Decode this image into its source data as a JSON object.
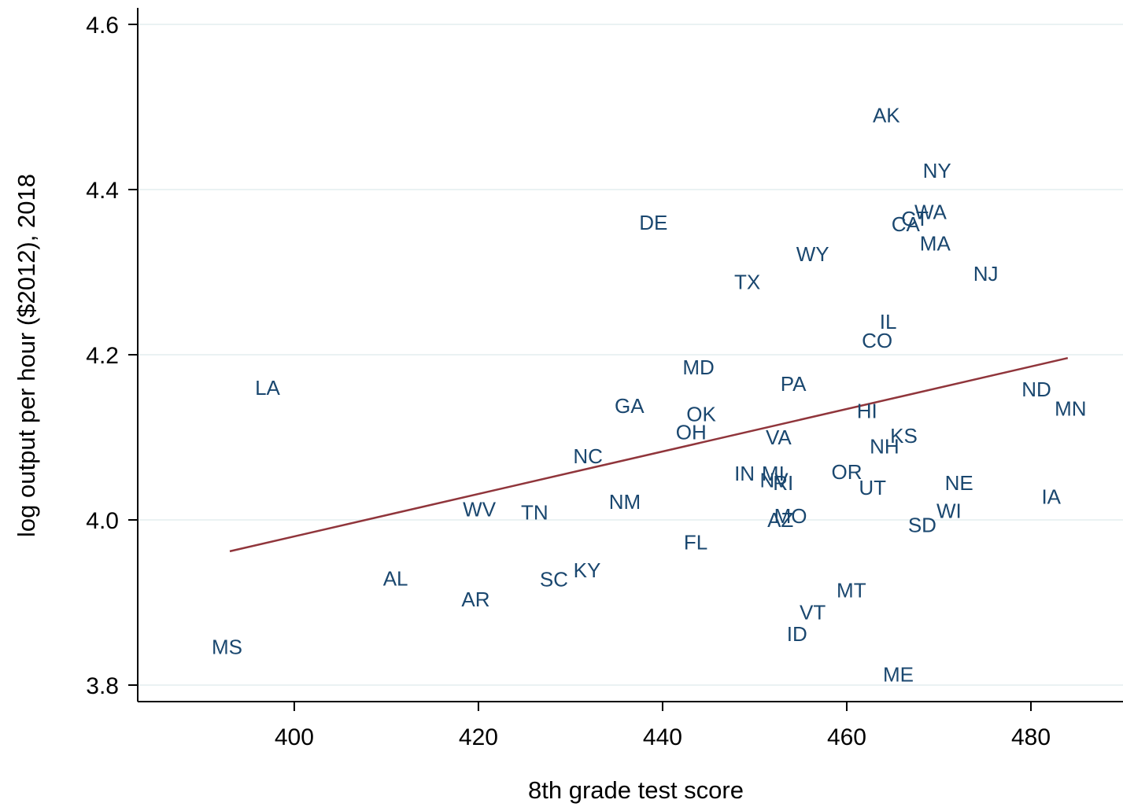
{
  "chart_data": {
    "type": "scatter",
    "title": "",
    "xlabel": "8th grade test score",
    "ylabel": "log output per hour ($2012), 2018",
    "xlim": [
      383,
      490
    ],
    "ylim": [
      3.78,
      4.62
    ],
    "xticks": [
      400,
      420,
      440,
      460,
      480
    ],
    "yticks": [
      3.8,
      4.0,
      4.2,
      4.4,
      4.6
    ],
    "ytick_labels": [
      "3.8",
      "4.0",
      "4.2",
      "4.4",
      "4.6"
    ],
    "grid": "horizontal",
    "label_color": "#1a476f",
    "fit_color": "#90353b",
    "points": [
      {
        "label": "AK",
        "x": 464.3,
        "y": 4.49
      },
      {
        "label": "NY",
        "x": 469.8,
        "y": 4.423
      },
      {
        "label": "WA",
        "x": 469.1,
        "y": 4.373
      },
      {
        "label": "CT",
        "x": 467.4,
        "y": 4.365
      },
      {
        "label": "CA",
        "x": 466.4,
        "y": 4.358
      },
      {
        "label": "MA",
        "x": 469.6,
        "y": 4.335
      },
      {
        "label": "DE",
        "x": 439.0,
        "y": 4.36
      },
      {
        "label": "WY",
        "x": 456.3,
        "y": 4.322
      },
      {
        "label": "NJ",
        "x": 475.1,
        "y": 4.298
      },
      {
        "label": "TX",
        "x": 449.2,
        "y": 4.288
      },
      {
        "label": "IL",
        "x": 464.5,
        "y": 4.24
      },
      {
        "label": "CO",
        "x": 463.3,
        "y": 4.217
      },
      {
        "label": "MD",
        "x": 443.9,
        "y": 4.185
      },
      {
        "label": "PA",
        "x": 454.2,
        "y": 4.165
      },
      {
        "label": "LA",
        "x": 397.1,
        "y": 4.16
      },
      {
        "label": "ND",
        "x": 480.6,
        "y": 4.158
      },
      {
        "label": "GA",
        "x": 436.4,
        "y": 4.138
      },
      {
        "label": "MN",
        "x": 484.3,
        "y": 4.135
      },
      {
        "label": "OK",
        "x": 444.2,
        "y": 4.128
      },
      {
        "label": "HI",
        "x": 462.2,
        "y": 4.132
      },
      {
        "label": "OH",
        "x": 443.1,
        "y": 4.106
      },
      {
        "label": "KS",
        "x": 466.2,
        "y": 4.102
      },
      {
        "label": "VA",
        "x": 452.6,
        "y": 4.1
      },
      {
        "label": "NH",
        "x": 464.1,
        "y": 4.089
      },
      {
        "label": "NC",
        "x": 431.9,
        "y": 4.077
      },
      {
        "label": "OR",
        "x": 460.0,
        "y": 4.058
      },
      {
        "label": "IN",
        "x": 448.9,
        "y": 4.056
      },
      {
        "label": "MI",
        "x": 452.0,
        "y": 4.056
      },
      {
        "label": "NV",
        "x": 452.1,
        "y": 4.048
      },
      {
        "label": "RI",
        "x": 453.1,
        "y": 4.045
      },
      {
        "label": "NE",
        "x": 472.2,
        "y": 4.045
      },
      {
        "label": "UT",
        "x": 462.8,
        "y": 4.039
      },
      {
        "label": "IA",
        "x": 482.2,
        "y": 4.028
      },
      {
        "label": "NM",
        "x": 435.9,
        "y": 4.022
      },
      {
        "label": "WV",
        "x": 420.1,
        "y": 4.013
      },
      {
        "label": "WI",
        "x": 471.1,
        "y": 4.011
      },
      {
        "label": "TN",
        "x": 426.1,
        "y": 4.009
      },
      {
        "label": "MO",
        "x": 453.9,
        "y": 4.005
      },
      {
        "label": "AZ",
        "x": 452.8,
        "y": 4.0
      },
      {
        "label": "SD",
        "x": 468.2,
        "y": 3.994
      },
      {
        "label": "FL",
        "x": 443.6,
        "y": 3.973
      },
      {
        "label": "KY",
        "x": 431.8,
        "y": 3.939
      },
      {
        "label": "AL",
        "x": 411.0,
        "y": 3.929
      },
      {
        "label": "SC",
        "x": 428.2,
        "y": 3.928
      },
      {
        "label": "MT",
        "x": 460.5,
        "y": 3.915
      },
      {
        "label": "AR",
        "x": 419.7,
        "y": 3.904
      },
      {
        "label": "VT",
        "x": 456.3,
        "y": 3.888
      },
      {
        "label": "ID",
        "x": 454.6,
        "y": 3.862
      },
      {
        "label": "MS",
        "x": 392.7,
        "y": 3.846
      },
      {
        "label": "ME",
        "x": 465.6,
        "y": 3.813
      }
    ],
    "fit_line": {
      "x": [
        393.0,
        484.0
      ],
      "y": [
        3.962,
        4.196
      ]
    }
  }
}
